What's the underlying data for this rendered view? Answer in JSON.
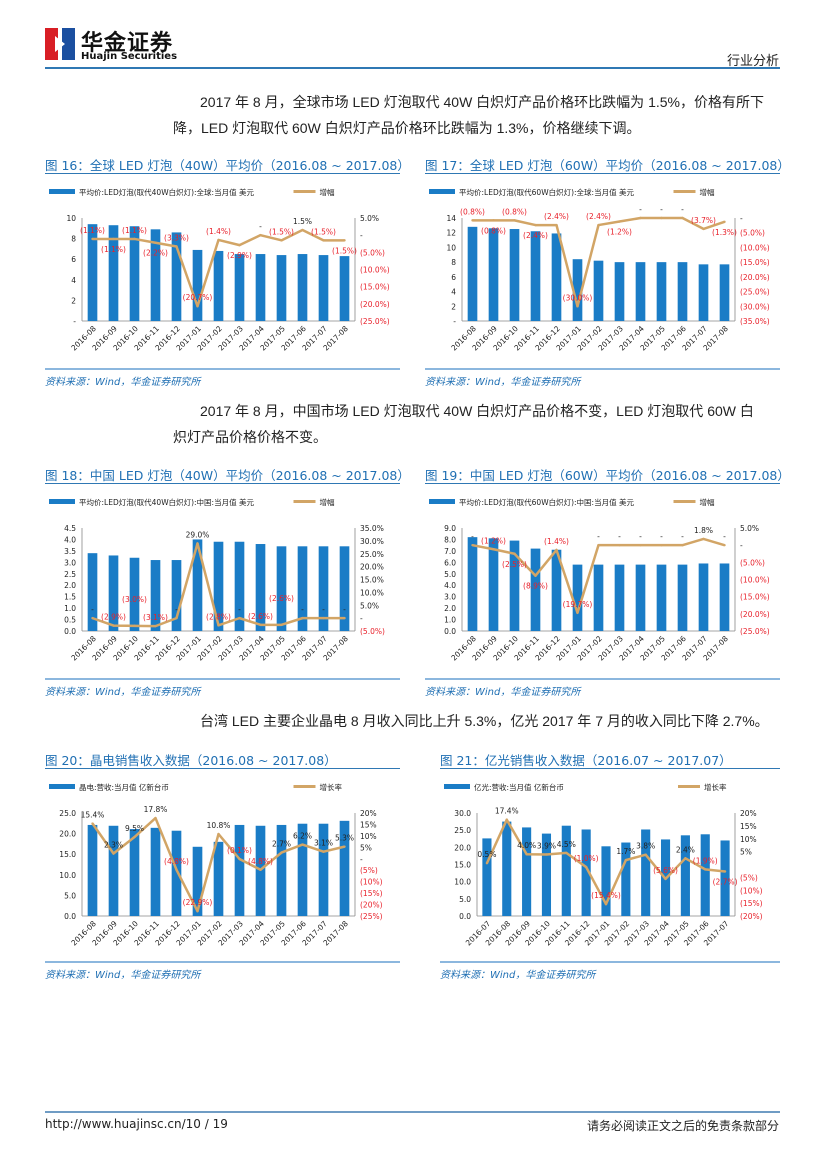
{
  "header": {
    "logo_cn": "华金证券",
    "logo_en": "Huajin Securities",
    "section": "行业分析"
  },
  "paragraphs": [
    {
      "line1": "2017 年 8 月，全球市场 LED 灯泡取代 40W 白炽灯产品价格环比跌幅为 1.5%，价格有所下",
      "line2": "降，LED 灯泡取代 60W 白炽灯产品价格环比跌幅为 1.3%，价格继续下调。"
    },
    {
      "line1": "2017 年 8 月，中国市场 LED 灯泡取代 40W 白炽灯产品价格不变，LED 灯泡取代 60W 白",
      "line2": "炽灯产品价格价格不变。"
    },
    {
      "line1": "台湾 LED 主要企业晶电 8 月收入同比上升 5.3%，亿光 2017 年 7 月的收入同比下降 2.7%。",
      "line2": ""
    }
  ],
  "figures": [
    {
      "title": "图 16：全球 LED 灯泡（40W）平均价（2016.08 ~ 2017.08）",
      "source": "资料来源：Wind，华金证券研究所"
    },
    {
      "title": "图 17：全球 LED 灯泡（60W）平均价（2016.08 ~ 2017.08）",
      "source": "资料来源：Wind，华金证券研究所"
    },
    {
      "title": "图 18：中国 LED 灯泡（40W）平均价（2016.08 ~ 2017.08）",
      "source": "资料来源：Wind，华金证券研究所"
    },
    {
      "title": "图 19：中国 LED 灯泡（60W）平均价（2016.08 ~ 2017.08）",
      "source": "资料来源：Wind，华金证券研究所"
    },
    {
      "title": "图 20：晶电销售收入数据（2016.08 ~ 2017.08）",
      "source": "资料来源：Wind，华金证券研究所"
    },
    {
      "title": "图 21：亿光销售收入数据（2016.07 ~ 2017.07）",
      "source": "资料来源：Wind，华金证券研究所"
    }
  ],
  "footer": {
    "url_page": "http://www.huajinsc.cn/10 / 19",
    "disclaimer": "请务必阅读正文之后的免责条款部分"
  },
  "colors": {
    "bar": "#1a7cc6",
    "line": "#d2a566",
    "negative": "#e8202a",
    "accent": "#1f6fb3"
  },
  "chart_data": [
    {
      "type": "bar+line",
      "bar_name": "平均价:LED灯泡(取代40W白炽灯):全球:当月值  美元",
      "line_name": "增幅",
      "categories": [
        "2016-08",
        "2016-09",
        "2016-10",
        "2016-11",
        "2016-12",
        "2017-01",
        "2017-02",
        "2017-03",
        "2017-04",
        "2017-05",
        "2017-06",
        "2017-07",
        "2017-08"
      ],
      "bars": [
        9.4,
        9.3,
        9.2,
        8.9,
        8.6,
        6.9,
        6.8,
        6.5,
        6.5,
        6.4,
        6.5,
        6.4,
        6.3
      ],
      "line": [
        -1.1,
        -1.1,
        -1.1,
        -2.2,
        -3.3,
        -20.7,
        -1.4,
        -2.9,
        0,
        -1.5,
        1.5,
        -1.5,
        -1.5
      ],
      "line_labels": [
        "(1.1%)",
        "(1.1%)",
        "(1.1%)",
        "(2.2%)",
        "(3.3%)",
        "(20.7%)",
        "(1.4%)",
        "(2.9%)",
        "-",
        "(1.5%)",
        "1.5%",
        "(1.5%)",
        "(1.5%)"
      ],
      "ylim": [
        0,
        10
      ],
      "left_ticks": [
        "10",
        "8",
        "6",
        "4",
        "2",
        "-"
      ],
      "y2lim": [
        -25,
        5
      ],
      "right_ticks": [
        "5.0%",
        "-",
        "(5.0%)",
        "(10.0%)",
        "(15.0%)",
        "(20.0%)",
        "(25.0%)"
      ]
    },
    {
      "type": "bar+line",
      "bar_name": "平均价:LED灯泡(取代60W白炽灯):全球:当月值  美元",
      "line_name": "增幅",
      "categories": [
        "2016-08",
        "2016-09",
        "2016-10",
        "2016-11",
        "2016-12",
        "2017-01",
        "2017-02",
        "2017-03",
        "2017-04",
        "2017-05",
        "2017-06",
        "2017-07",
        "2017-08"
      ],
      "bars": [
        12.8,
        12.6,
        12.5,
        12.2,
        11.9,
        8.4,
        8.2,
        8.0,
        8.0,
        8.0,
        8.0,
        7.7,
        7.7
      ],
      "line": [
        -0.8,
        -0.8,
        -0.8,
        -2.4,
        -2.4,
        -30.0,
        -2.4,
        -1.2,
        0,
        0,
        0,
        -3.7,
        -1.3
      ],
      "line_labels": [
        "(0.8%)",
        "(0.8%)",
        "(0.8%)",
        "(2.4%)",
        "(2.4%)",
        "(30.0%)",
        "(2.4%)",
        "(1.2%)",
        "-",
        "-",
        "-",
        "(3.7%)",
        "(1.3%)"
      ],
      "ylim": [
        0,
        14
      ],
      "left_ticks": [
        "14",
        "12",
        "10",
        "8",
        "6",
        "4",
        "2",
        "-"
      ],
      "y2lim": [
        -35,
        0
      ],
      "right_ticks": [
        "-",
        "(5.0%)",
        "(10.0%)",
        "(15.0%)",
        "(20.0%)",
        "(25.0%)",
        "(30.0%)",
        "(35.0%)"
      ]
    },
    {
      "type": "bar+line",
      "bar_name": "平均价:LED灯泡(取代40W白炽灯):中国:当月值  美元",
      "line_name": "增幅",
      "categories": [
        "2016-08",
        "2016-09",
        "2016-10",
        "2016-11",
        "2016-12",
        "2017-01",
        "2017-02",
        "2017-03",
        "2017-04",
        "2017-05",
        "2017-06",
        "2017-07",
        "2017-08"
      ],
      "bars": [
        3.4,
        3.3,
        3.2,
        3.1,
        3.1,
        4.0,
        3.9,
        3.9,
        3.8,
        3.7,
        3.7,
        3.7,
        3.7
      ],
      "line": [
        0,
        -2.9,
        -3.0,
        -3.1,
        0,
        29.0,
        -2.8,
        0,
        -2.6,
        -2.6,
        0,
        0,
        0
      ],
      "line_labels": [
        "-",
        "(2.9%)",
        "(3.0%)",
        "(3.1%)",
        "-",
        "29.0%",
        "(2.8%)",
        "-",
        "(2.6%)",
        "(2.6%)",
        "-",
        "-",
        "-"
      ],
      "ylim": [
        0,
        4.5
      ],
      "left_ticks": [
        "4.5",
        "4.0",
        "3.5",
        "3.0",
        "2.5",
        "2.0",
        "1.5",
        "1.0",
        "0.5",
        "0.0"
      ],
      "y2lim": [
        -5,
        35
      ],
      "right_ticks": [
        "35.0%",
        "30.0%",
        "25.0%",
        "20.0%",
        "15.0%",
        "10.0%",
        "5.0%",
        "-",
        "(5.0%)"
      ]
    },
    {
      "type": "bar+line",
      "bar_name": "平均价:LED灯泡(取代60W白炽灯):中国:当月值  美元",
      "line_name": "增幅",
      "categories": [
        "2016-08",
        "2016-09",
        "2016-10",
        "2016-11",
        "2016-12",
        "2017-01",
        "2017-02",
        "2017-03",
        "2017-04",
        "2017-05",
        "2017-06",
        "2017-07",
        "2017-08"
      ],
      "bars": [
        8.2,
        8.1,
        7.9,
        7.2,
        7.1,
        5.8,
        5.8,
        5.8,
        5.8,
        5.8,
        5.8,
        5.9,
        5.9
      ],
      "line": [
        0,
        -1.2,
        -2.5,
        -8.9,
        -1.4,
        -19.7,
        0,
        0,
        0,
        0,
        0,
        1.8,
        0
      ],
      "line_labels": [
        "-",
        "(1.2%)",
        "(2.5%)",
        "(8.9%)",
        "(1.4%)",
        "(19.7%)",
        "-",
        "-",
        "-",
        "-",
        "-",
        "1.8%",
        "-"
      ],
      "ylim": [
        0,
        9
      ],
      "left_ticks": [
        "9.0",
        "8.0",
        "7.0",
        "6.0",
        "5.0",
        "4.0",
        "3.0",
        "2.0",
        "1.0",
        "0.0"
      ],
      "y2lim": [
        -25,
        5
      ],
      "right_ticks": [
        "5.0%",
        "-",
        "(5.0%)",
        "(10.0%)",
        "(15.0%)",
        "(20.0%)",
        "(25.0%)"
      ]
    },
    {
      "type": "bar+line",
      "bar_name": "晶电:营收:当月值  亿新台币",
      "line_name": "增长率",
      "categories": [
        "2016-08",
        "2016-09",
        "2016-10",
        "2016-11",
        "2016-12",
        "2017-01",
        "2017-02",
        "2017-03",
        "2017-04",
        "2017-05",
        "2017-06",
        "2017-07",
        "2017-08"
      ],
      "bars": [
        22.1,
        21.9,
        21.1,
        21.4,
        20.7,
        16.8,
        18.0,
        22.1,
        21.9,
        22.1,
        22.4,
        22.4,
        23.1
      ],
      "line": [
        15.4,
        2.3,
        9.5,
        17.8,
        -4.8,
        -22.9,
        10.8,
        -0.1,
        -4.8,
        2.7,
        6.2,
        3.1,
        5.3
      ],
      "line_labels": [
        "15.4%",
        "2.3%",
        "9.5%",
        "17.8%",
        "(4.8%)",
        "(22.9%)",
        "10.8%",
        "(0.1%)",
        "(4.8%)",
        "2.7%",
        "6.2%",
        "3.1%",
        "5.3%"
      ],
      "ylim": [
        0,
        25
      ],
      "left_ticks": [
        "25.0",
        "20.0",
        "15.0",
        "10.0",
        "5.0",
        "0.0"
      ],
      "y2lim": [
        -25,
        20
      ],
      "right_ticks": [
        "20%",
        "15%",
        "10%",
        "5%",
        "-",
        "(5%)",
        "(10%)",
        "(15%)",
        "(20%)",
        "(25%)"
      ]
    },
    {
      "type": "bar+line",
      "bar_name": "亿光:营收:当月值  亿新台币",
      "line_name": "增长率",
      "categories": [
        "2016-07",
        "2016-08",
        "2016-09",
        "2016-10",
        "2016-11",
        "2016-12",
        "2017-01",
        "2017-02",
        "2017-03",
        "2017-04",
        "2017-05",
        "2017-06",
        "2017-07"
      ],
      "bars": [
        22.6,
        27.5,
        25.8,
        24.0,
        26.3,
        25.2,
        20.3,
        21.4,
        25.2,
        22.3,
        23.5,
        23.8,
        22.0
      ],
      "line": [
        0.5,
        17.4,
        4.0,
        3.9,
        4.5,
        -1.0,
        -15.4,
        1.7,
        3.8,
        -5.6,
        2.4,
        -1.9,
        -2.7
      ],
      "line_labels": [
        "0.5%",
        "17.4%",
        "4.0%",
        "3.9%",
        "4.5%",
        "(1.0%)",
        "(15.4%)",
        "1.7%",
        "3.8%",
        "(5.6%)",
        "2.4%",
        "(1.9%)",
        "(2.7%)"
      ],
      "ylim": [
        0,
        30
      ],
      "left_ticks": [
        "30.0",
        "25.0",
        "20.0",
        "15.0",
        "10.0",
        "5.0",
        "0.0"
      ],
      "y2lim": [
        -20,
        20
      ],
      "right_ticks": [
        "20%",
        "15%",
        "10%",
        "5%",
        "",
        "(5%)",
        "(10%)",
        "(15%)",
        "(20%)"
      ]
    }
  ]
}
